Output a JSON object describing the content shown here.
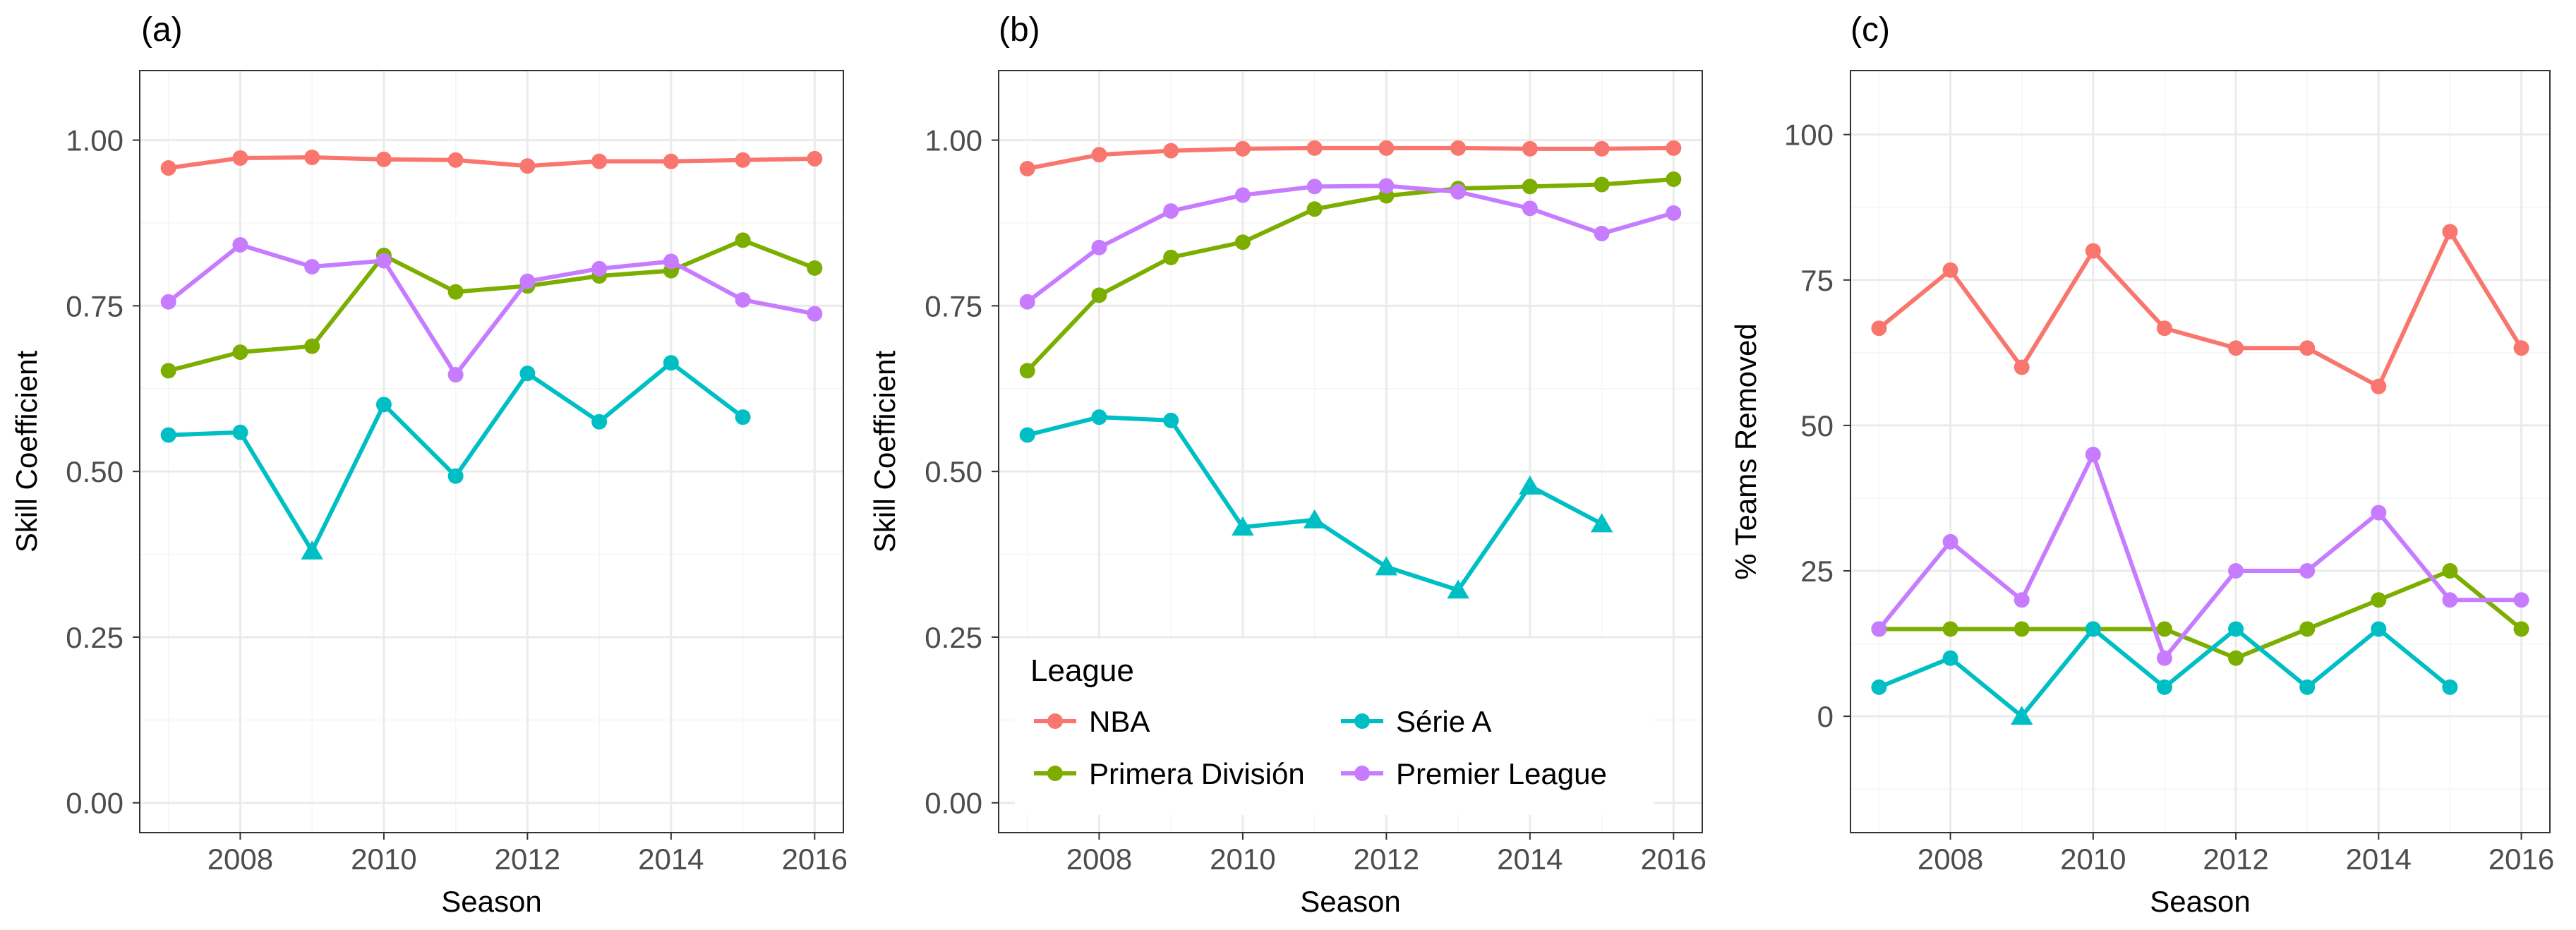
{
  "chart_data": [
    {
      "type": "line",
      "panel_label": "(a)",
      "xlabel": "Season",
      "ylabel": "Skill Coefficient",
      "xlim": [
        2006.6,
        2016.4
      ],
      "ylim": [
        -0.045,
        1.105
      ],
      "x_ticks": [
        2008,
        2010,
        2012,
        2014,
        2016
      ],
      "y_ticks": [
        0.0,
        0.25,
        0.5,
        0.75,
        1.0
      ],
      "y_tick_labels": [
        "0.00",
        "0.25",
        "0.50",
        "0.75",
        "1.00"
      ],
      "x": [
        2007,
        2008,
        2009,
        2010,
        2011,
        2012,
        2013,
        2014,
        2015,
        2016
      ],
      "grid": true,
      "series": [
        {
          "name": "NBA",
          "values": [
            0.958,
            0.973,
            0.974,
            0.971,
            0.97,
            0.961,
            0.968,
            0.968,
            0.97,
            0.972
          ],
          "triangles": []
        },
        {
          "name": "Primera División",
          "values": [
            0.652,
            0.68,
            0.689,
            0.826,
            0.771,
            0.78,
            0.795,
            0.803,
            0.849,
            0.807
          ],
          "triangles": []
        },
        {
          "name": "Série A",
          "values": [
            0.555,
            0.559,
            0.38,
            0.601,
            0.493,
            0.648,
            0.575,
            0.664,
            0.582,
            null
          ],
          "triangles": [
            2009
          ]
        },
        {
          "name": "Premier League",
          "values": [
            0.756,
            0.842,
            0.809,
            0.818,
            0.646,
            0.787,
            0.806,
            0.817,
            0.759,
            0.738
          ],
          "triangles": []
        }
      ]
    },
    {
      "type": "line",
      "panel_label": "(b)",
      "xlabel": "Season",
      "ylabel": "Skill Coefficient",
      "xlim": [
        2006.6,
        2016.4
      ],
      "ylim": [
        -0.045,
        1.105
      ],
      "x_ticks": [
        2008,
        2010,
        2012,
        2014,
        2016
      ],
      "y_ticks": [
        0.0,
        0.25,
        0.5,
        0.75,
        1.0
      ],
      "y_tick_labels": [
        "0.00",
        "0.25",
        "0.50",
        "0.75",
        "1.00"
      ],
      "x": [
        2007,
        2008,
        2009,
        2010,
        2011,
        2012,
        2013,
        2014,
        2015,
        2016
      ],
      "grid": true,
      "series": [
        {
          "name": "NBA",
          "values": [
            0.957,
            0.978,
            0.984,
            0.987,
            0.988,
            0.988,
            0.988,
            0.987,
            0.987,
            0.988
          ],
          "triangles": []
        },
        {
          "name": "Primera División",
          "values": [
            0.652,
            0.766,
            0.823,
            0.846,
            0.896,
            0.916,
            0.927,
            0.93,
            0.933,
            0.941
          ],
          "triangles": []
        },
        {
          "name": "Série A",
          "values": [
            0.555,
            0.582,
            0.577,
            0.416,
            0.427,
            0.356,
            0.321,
            0.478,
            0.421,
            null
          ],
          "triangles": [
            2010,
            2011,
            2012,
            2013,
            2014,
            2015
          ]
        },
        {
          "name": "Premier League",
          "values": [
            0.756,
            0.838,
            0.893,
            0.917,
            0.93,
            0.931,
            0.922,
            0.897,
            0.859,
            0.89
          ],
          "triangles": []
        }
      ],
      "legend": {
        "title": "League",
        "placement": "bottom-left inside",
        "entries": [
          "NBA",
          "Série A",
          "Primera División",
          "Premier League"
        ]
      }
    },
    {
      "type": "line",
      "panel_label": "(c)",
      "xlabel": "Season",
      "ylabel": "% Teams Removed",
      "xlim": [
        2006.6,
        2016.4
      ],
      "ylim": [
        -20,
        111
      ],
      "x_ticks": [
        2008,
        2010,
        2012,
        2014,
        2016
      ],
      "y_ticks": [
        0,
        25,
        50,
        75,
        100
      ],
      "y_tick_labels": [
        "0",
        "25",
        "50",
        "75",
        "100"
      ],
      "x": [
        2007,
        2008,
        2009,
        2010,
        2011,
        2012,
        2013,
        2014,
        2015,
        2016
      ],
      "grid": true,
      "series": [
        {
          "name": "NBA",
          "values": [
            66.7,
            76.7,
            60.0,
            80.0,
            66.7,
            63.3,
            63.3,
            56.7,
            83.3,
            63.3
          ],
          "triangles": []
        },
        {
          "name": "Primera División",
          "values": [
            15,
            15,
            15,
            15,
            15,
            10,
            15,
            20,
            25,
            15
          ],
          "triangles": []
        },
        {
          "name": "Série A",
          "values": [
            5,
            10,
            0,
            15,
            5,
            15,
            5,
            15,
            5,
            null
          ],
          "triangles": [
            2009
          ]
        },
        {
          "name": "Premier League",
          "values": [
            15,
            30,
            20,
            45,
            10,
            25,
            25,
            35,
            20,
            20
          ],
          "triangles": []
        }
      ]
    }
  ],
  "colors": {
    "NBA": "#F8766D",
    "Primera División": "#7CAE00",
    "Série A": "#00BFC4",
    "Premier League": "#C77CFF",
    "grid_major": "#EBEBEB",
    "grid_minor": "#F5F5F5",
    "axis_text": "#4D4D4D",
    "panel_border": "#333333"
  }
}
